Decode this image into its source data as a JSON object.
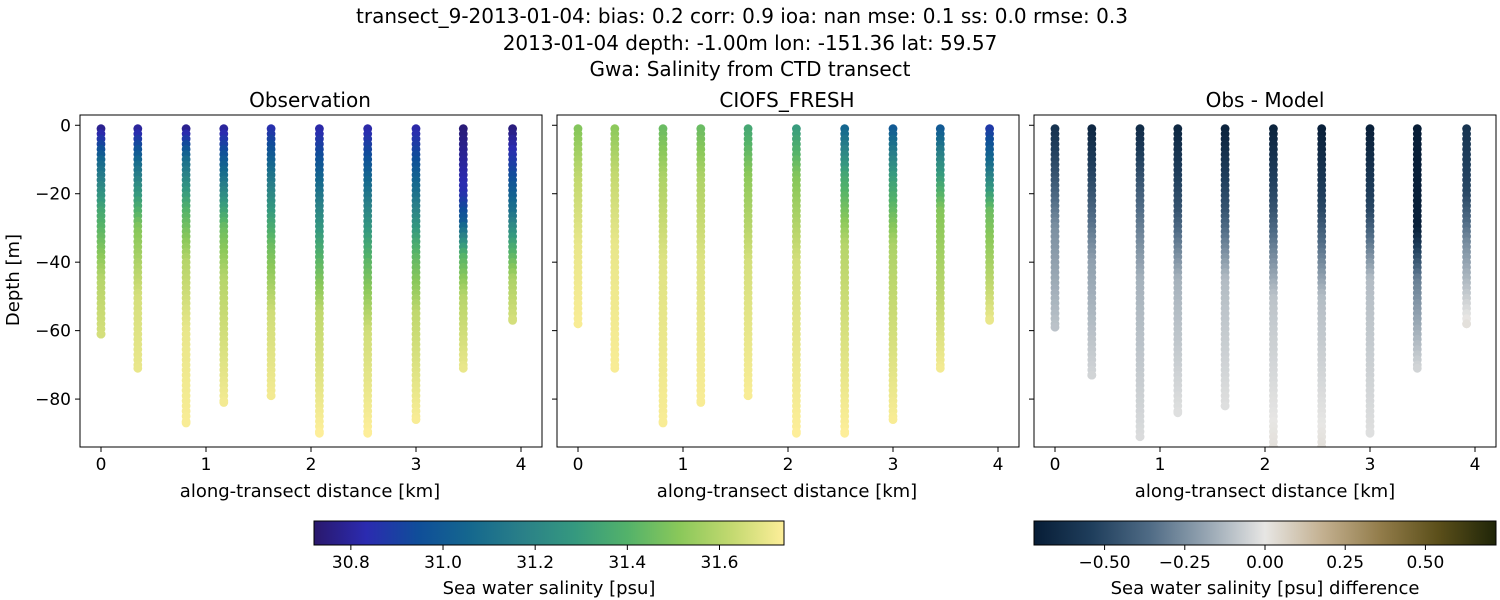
{
  "header": {
    "line1": "transect_9-2013-01-04: bias: 0.2  corr: 0.9  ioa: nan  mse: 0.1  ss: 0.0  rmse: 0.3",
    "line2": "2013-01-04 depth: -1.00m lon: -151.36 lat: 59.57",
    "line3": "Gwa: Salinity from CTD transect"
  },
  "chart_data": [
    {
      "type": "scatter",
      "title": "Observation",
      "xlabel": "along-transect distance [km]",
      "ylabel": "Depth [m]",
      "xlim": [
        -0.2,
        4.2
      ],
      "ylim": [
        -94,
        3
      ],
      "xticks": [
        "0",
        "1",
        "2",
        "3",
        "4"
      ],
      "yticks": [
        "0",
        "−20",
        "−40",
        "−60",
        "−80"
      ],
      "colormap": "haline",
      "color_range": [
        30.72,
        31.74
      ],
      "casts": [
        {
          "x": 0.0,
          "bottom": -61,
          "profile": [
            [
              -1,
              30.78
            ],
            [
              -10,
              31.05
            ],
            [
              -25,
              31.35
            ],
            [
              -45,
              31.6
            ],
            [
              -61,
              31.66
            ]
          ]
        },
        {
          "x": 0.35,
          "bottom": -71,
          "profile": [
            [
              -1,
              30.8
            ],
            [
              -12,
              31.1
            ],
            [
              -30,
              31.5
            ],
            [
              -50,
              31.66
            ],
            [
              -71,
              31.7
            ]
          ]
        },
        {
          "x": 0.81,
          "bottom": -87,
          "profile": [
            [
              -1,
              30.78
            ],
            [
              -10,
              31.08
            ],
            [
              -25,
              31.4
            ],
            [
              -40,
              31.6
            ],
            [
              -60,
              31.7
            ],
            [
              -87,
              31.73
            ]
          ]
        },
        {
          "x": 1.17,
          "bottom": -81,
          "profile": [
            [
              -1,
              30.8
            ],
            [
              -15,
              31.1
            ],
            [
              -30,
              31.45
            ],
            [
              -45,
              31.6
            ],
            [
              -81,
              31.72
            ]
          ]
        },
        {
          "x": 1.62,
          "bottom": -79,
          "profile": [
            [
              -1,
              30.85
            ],
            [
              -15,
              31.12
            ],
            [
              -35,
              31.45
            ],
            [
              -55,
              31.65
            ],
            [
              -79,
              31.72
            ]
          ]
        },
        {
          "x": 2.08,
          "bottom": -90,
          "profile": [
            [
              -1,
              30.82
            ],
            [
              -20,
              31.12
            ],
            [
              -40,
              31.42
            ],
            [
              -55,
              31.62
            ],
            [
              -90,
              31.74
            ]
          ]
        },
        {
          "x": 2.54,
          "bottom": -90,
          "profile": [
            [
              -1,
              30.82
            ],
            [
              -20,
              31.12
            ],
            [
              -40,
              31.42
            ],
            [
              -60,
              31.65
            ],
            [
              -90,
              31.74
            ]
          ]
        },
        {
          "x": 3.0,
          "bottom": -86,
          "profile": [
            [
              -1,
              30.82
            ],
            [
              -20,
              31.1
            ],
            [
              -38,
              31.42
            ],
            [
              -55,
              31.62
            ],
            [
              -86,
              31.73
            ]
          ]
        },
        {
          "x": 3.45,
          "bottom": -71,
          "profile": [
            [
              -1,
              30.74
            ],
            [
              -20,
              30.85
            ],
            [
              -28,
              31.0
            ],
            [
              -38,
              31.4
            ],
            [
              -50,
              31.6
            ],
            [
              -71,
              31.7
            ]
          ]
        },
        {
          "x": 3.92,
          "bottom": -57,
          "profile": [
            [
              -1,
              30.75
            ],
            [
              -12,
              30.9
            ],
            [
              -25,
              31.1
            ],
            [
              -35,
              31.35
            ],
            [
              -45,
              31.58
            ],
            [
              -57,
              31.66
            ]
          ]
        }
      ]
    },
    {
      "type": "scatter",
      "title": "CIOFS_FRESH",
      "xlabel": "along-transect distance [km]",
      "xlim": [
        -0.2,
        4.2
      ],
      "ylim": [
        -94,
        3
      ],
      "xticks": [
        "0",
        "1",
        "2",
        "3",
        "4"
      ],
      "colormap": "haline",
      "color_range": [
        30.72,
        31.74
      ],
      "casts": [
        {
          "x": 0.0,
          "bottom": -58,
          "profile": [
            [
              -1,
              31.5
            ],
            [
              -15,
              31.62
            ],
            [
              -35,
              31.7
            ],
            [
              -58,
              31.73
            ]
          ]
        },
        {
          "x": 0.35,
          "bottom": -71,
          "profile": [
            [
              -1,
              31.52
            ],
            [
              -15,
              31.63
            ],
            [
              -35,
              31.7
            ],
            [
              -71,
              31.73
            ]
          ]
        },
        {
          "x": 0.81,
          "bottom": -87,
          "profile": [
            [
              -1,
              31.45
            ],
            [
              -15,
              31.58
            ],
            [
              -40,
              31.68
            ],
            [
              -87,
              31.73
            ]
          ]
        },
        {
          "x": 1.17,
          "bottom": -81,
          "profile": [
            [
              -1,
              31.45
            ],
            [
              -15,
              31.58
            ],
            [
              -40,
              31.68
            ],
            [
              -81,
              31.73
            ]
          ]
        },
        {
          "x": 1.62,
          "bottom": -79,
          "profile": [
            [
              -1,
              31.35
            ],
            [
              -15,
              31.52
            ],
            [
              -40,
              31.66
            ],
            [
              -79,
              31.73
            ]
          ]
        },
        {
          "x": 2.08,
          "bottom": -90,
          "profile": [
            [
              -1,
              31.3
            ],
            [
              -15,
              31.5
            ],
            [
              -40,
              31.66
            ],
            [
              -90,
              31.74
            ]
          ]
        },
        {
          "x": 2.54,
          "bottom": -90,
          "profile": [
            [
              -1,
              31.05
            ],
            [
              -15,
              31.35
            ],
            [
              -35,
              31.6
            ],
            [
              -90,
              31.74
            ]
          ]
        },
        {
          "x": 3.0,
          "bottom": -86,
          "profile": [
            [
              -1,
              31.0
            ],
            [
              -15,
              31.3
            ],
            [
              -35,
              31.58
            ],
            [
              -86,
              31.73
            ]
          ]
        },
        {
          "x": 3.45,
          "bottom": -71,
          "profile": [
            [
              -1,
              31.0
            ],
            [
              -10,
              31.2
            ],
            [
              -25,
              31.5
            ],
            [
              -71,
              31.72
            ]
          ]
        },
        {
          "x": 3.92,
          "bottom": -57,
          "profile": [
            [
              -1,
              30.88
            ],
            [
              -12,
              31.1
            ],
            [
              -25,
              31.45
            ],
            [
              -57,
              31.7
            ]
          ]
        }
      ]
    },
    {
      "type": "scatter",
      "title": "Obs - Model",
      "xlabel": "along-transect distance [km]",
      "xlim": [
        -0.2,
        4.2
      ],
      "ylim": [
        -94,
        3
      ],
      "xticks": [
        "0",
        "1",
        "2",
        "3",
        "4"
      ],
      "colormap": "diff",
      "color_range": [
        -0.72,
        0.72
      ],
      "casts": [
        {
          "x": 0.0,
          "bottom": -59,
          "profile": [
            [
              1,
              -0.62
            ],
            [
              -15,
              -0.45
            ],
            [
              -30,
              -0.25
            ],
            [
              -59,
              -0.1
            ]
          ]
        },
        {
          "x": 0.35,
          "bottom": -73,
          "profile": [
            [
              1,
              -0.68
            ],
            [
              -20,
              -0.45
            ],
            [
              -40,
              -0.2
            ],
            [
              -73,
              -0.05
            ]
          ]
        },
        {
          "x": 0.81,
          "bottom": -91,
          "profile": [
            [
              1,
              -0.66
            ],
            [
              -20,
              -0.4
            ],
            [
              -45,
              -0.15
            ],
            [
              -91,
              -0.03
            ]
          ]
        },
        {
          "x": 1.17,
          "bottom": -84,
          "profile": [
            [
              1,
              -0.68
            ],
            [
              -25,
              -0.45
            ],
            [
              -45,
              -0.15
            ],
            [
              -84,
              -0.02
            ]
          ]
        },
        {
          "x": 1.62,
          "bottom": -82,
          "profile": [
            [
              1,
              -0.7
            ],
            [
              -25,
              -0.45
            ],
            [
              -45,
              -0.12
            ],
            [
              -82,
              -0.02
            ]
          ]
        },
        {
          "x": 2.08,
          "bottom": -94,
          "profile": [
            [
              1,
              -0.7
            ],
            [
              -25,
              -0.45
            ],
            [
              -50,
              -0.1
            ],
            [
              -94,
              0.02
            ]
          ]
        },
        {
          "x": 2.54,
          "bottom": -94,
          "profile": [
            [
              1,
              -0.72
            ],
            [
              -25,
              -0.5
            ],
            [
              -50,
              -0.12
            ],
            [
              -94,
              0.02
            ]
          ]
        },
        {
          "x": 3.0,
          "bottom": -90,
          "profile": [
            [
              1,
              -0.72
            ],
            [
              -25,
              -0.5
            ],
            [
              -45,
              -0.12
            ],
            [
              -90,
              -0.02
            ]
          ]
        },
        {
          "x": 3.45,
          "bottom": -71,
          "profile": [
            [
              1,
              -0.72
            ],
            [
              -30,
              -0.7
            ],
            [
              -45,
              -0.3
            ],
            [
              -71,
              -0.05
            ]
          ]
        },
        {
          "x": 3.92,
          "bottom": -58,
          "profile": [
            [
              1,
              -0.6
            ],
            [
              -20,
              -0.5
            ],
            [
              -35,
              -0.25
            ],
            [
              -58,
              0.02
            ]
          ]
        }
      ]
    }
  ],
  "colorbars": [
    {
      "label": "Sea water salinity [psu]",
      "colormap": "haline",
      "range": [
        30.72,
        31.74
      ],
      "ticks": [
        {
          "value": 30.8,
          "label": "30.8"
        },
        {
          "value": 31.0,
          "label": "31.0"
        },
        {
          "value": 31.2,
          "label": "31.2"
        },
        {
          "value": 31.4,
          "label": "31.4"
        },
        {
          "value": 31.6,
          "label": "31.6"
        }
      ]
    },
    {
      "label": "Sea water salinity [psu] difference",
      "colormap": "diff",
      "range": [
        -0.72,
        0.72
      ],
      "ticks": [
        {
          "value": -0.5,
          "label": "−0.50"
        },
        {
          "value": -0.25,
          "label": "−0.25"
        },
        {
          "value": 0.0,
          "label": "0.00"
        },
        {
          "value": 0.25,
          "label": "0.25"
        },
        {
          "value": 0.5,
          "label": "0.50"
        }
      ]
    }
  ],
  "colormaps": {
    "haline": [
      "#2a186c",
      "#2b2bb0",
      "#0f4e99",
      "#15688e",
      "#2a8088",
      "#35997f",
      "#53b26a",
      "#8ac85a",
      "#c3d970",
      "#fdee99"
    ],
    "diff": [
      "#071d36",
      "#1f3e5c",
      "#4f6b85",
      "#97a6b3",
      "#e7e6e4",
      "#c3b090",
      "#927c4a",
      "#5b4f1a",
      "#1f2508"
    ]
  }
}
